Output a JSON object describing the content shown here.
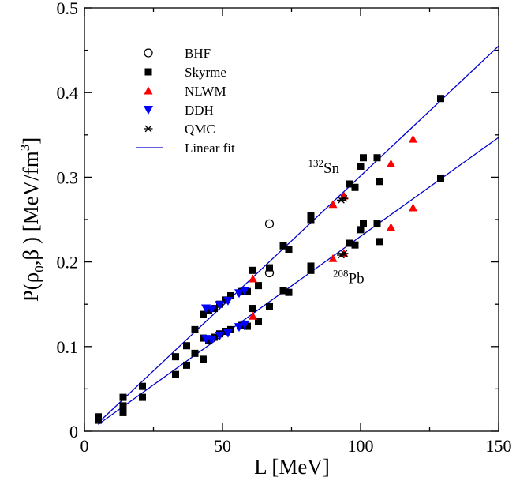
{
  "chart_data": {
    "type": "scatter",
    "xlabel": "L [MeV]",
    "ylabel": {
      "base": "P(ρ",
      "sub0": "0",
      "mid": ",β ) [MeV/fm",
      "sup": "3",
      "end": "]"
    },
    "xlim": [
      0,
      150
    ],
    "ylim": [
      0,
      0.5
    ],
    "xticks": [
      0,
      50,
      100,
      150
    ],
    "yticks": [
      0,
      0.1,
      0.2,
      0.3,
      0.4,
      0.5
    ],
    "ytick_labels": [
      "0",
      "0.1",
      "0.2",
      "0.3",
      "0.4",
      "0.5"
    ],
    "grid": false,
    "legend_position": "top-left",
    "legend": [
      {
        "key": "bhf",
        "label": "BHF"
      },
      {
        "key": "skyrme",
        "label": "Skyrme"
      },
      {
        "key": "nlwm",
        "label": "NLWM"
      },
      {
        "key": "ddh",
        "label": "DDH"
      },
      {
        "key": "qmc",
        "label": "QMC"
      },
      {
        "key": "fit",
        "label": "Linear fit"
      }
    ],
    "annotations": [
      {
        "key": "sn",
        "sup": "132",
        "text": "Sn",
        "x": 81,
        "y": 0.305
      },
      {
        "key": "pb",
        "sup": "208",
        "text": "Pb",
        "x": 90,
        "y": 0.175
      }
    ],
    "colors": {
      "skyrme": "#000000",
      "nlwm": "#ff0000",
      "ddh": "#0000ff",
      "qmc": "#000000",
      "bhf": "#000000",
      "fit": "#0000cc"
    },
    "fits": [
      {
        "name": "132Sn",
        "x": [
          5,
          150
        ],
        "y": [
          0.01,
          0.455
        ]
      },
      {
        "name": "208Pb",
        "x": [
          5,
          150
        ],
        "y": [
          0.008,
          0.347
        ]
      }
    ],
    "series": [
      {
        "name": "BHF",
        "marker": "open-circle",
        "x": [
          67,
          67
        ],
        "y": [
          0.245,
          0.187
        ]
      },
      {
        "name": "Skyrme",
        "marker": "square",
        "x": [
          5,
          14,
          14,
          21,
          33,
          37,
          40,
          43,
          45,
          47,
          49,
          51,
          53,
          57,
          59,
          61,
          63,
          67,
          72,
          74,
          82,
          82,
          96,
          98,
          100,
          101,
          106,
          107,
          129,
          5,
          14,
          14,
          21,
          33,
          37,
          40,
          43,
          43,
          45,
          47,
          49,
          51,
          53,
          57,
          59,
          61,
          63,
          67,
          72,
          74,
          82,
          82,
          96,
          98,
          100,
          101,
          106,
          107,
          129
        ],
        "y": [
          0.017,
          0.04,
          0.03,
          0.053,
          0.088,
          0.101,
          0.12,
          0.138,
          0.143,
          0.145,
          0.15,
          0.155,
          0.16,
          0.165,
          0.165,
          0.19,
          0.172,
          0.193,
          0.219,
          0.215,
          0.255,
          0.25,
          0.292,
          0.288,
          0.313,
          0.323,
          0.323,
          0.295,
          0.393,
          0.013,
          0.028,
          0.022,
          0.04,
          0.067,
          0.078,
          0.092,
          0.085,
          0.11,
          0.107,
          0.111,
          0.115,
          0.118,
          0.12,
          0.125,
          0.124,
          0.145,
          0.13,
          0.147,
          0.166,
          0.164,
          0.195,
          0.19,
          0.222,
          0.22,
          0.238,
          0.245,
          0.245,
          0.224,
          0.299
        ]
      },
      {
        "name": "NLWM",
        "marker": "triangle-up",
        "x": [
          61,
          90,
          94,
          111,
          119,
          61,
          90,
          94,
          111,
          119
        ],
        "y": [
          0.18,
          0.268,
          0.278,
          0.316,
          0.345,
          0.136,
          0.204,
          0.21,
          0.241,
          0.264
        ]
      },
      {
        "name": "DDH",
        "marker": "triangle-down",
        "x": [
          44,
          46,
          49,
          52,
          56,
          58,
          44,
          46,
          49,
          52,
          56,
          58
        ],
        "y": [
          0.145,
          0.144,
          0.149,
          0.154,
          0.163,
          0.166,
          0.109,
          0.108,
          0.113,
          0.116,
          0.123,
          0.126
        ]
      },
      {
        "name": "QMC",
        "marker": "asterisk",
        "x": [
          94,
          93,
          94,
          93
        ],
        "y": [
          0.275,
          0.273,
          0.21,
          0.208
        ]
      }
    ]
  }
}
